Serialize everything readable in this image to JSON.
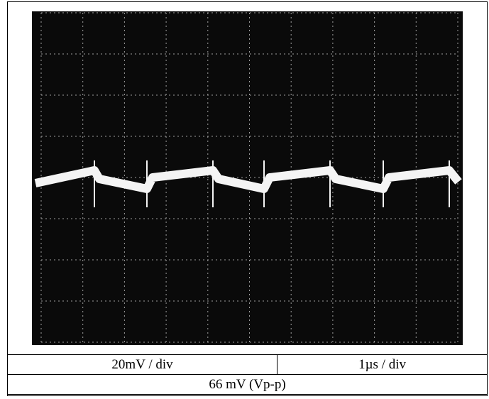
{
  "table": {
    "rows": [
      [
        "20mV / div",
        "1µs / div"
      ],
      [
        "66 mV (Vp-p)"
      ]
    ]
  }
}
